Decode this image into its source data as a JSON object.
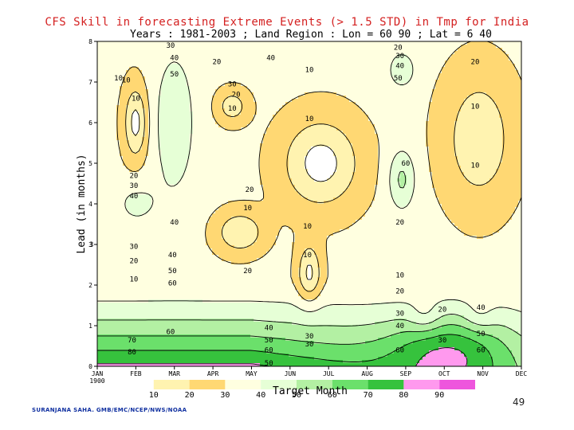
{
  "footer": "SURANJANA SAHA. GMB/EMC/NCEP/NWS/NOAA",
  "page_number": "49",
  "chart_data": {
    "type": "heatmap",
    "title": "CFS Skill in forecasting Extreme Events (> 1.5 STD) in Tmp for India",
    "subtitle": "Years : 1981-2003 ; Land Region : Lon = 60 90 ; Lat = 6 40",
    "xlabel": "Target Month",
    "ylabel": "Lead (in months)",
    "x_categories": [
      "JAN 1900",
      "FEB",
      "MAR",
      "APR",
      "MAY",
      "JUN",
      "JUL",
      "AUG",
      "SEP",
      "OCT",
      "NOV",
      "DEC"
    ],
    "y_ticks": [
      "0",
      "1",
      "2",
      "3",
      "4",
      "5",
      "6",
      "7",
      "8"
    ],
    "ylim": [
      0,
      8
    ],
    "levels": [
      10,
      20,
      30,
      40,
      50,
      60,
      70,
      80,
      90
    ],
    "level_labels": [
      "10",
      "20",
      "30",
      "40",
      "50",
      "60",
      "70",
      "80",
      "90"
    ],
    "colors": {
      "lt10": "#ffffff",
      "c10_20": "#fff3b0",
      "c20_30": "#ffd873",
      "c30_40": "#ffffe0",
      "c40_50": "#e6ffd6",
      "c50_60": "#b3f0a3",
      "c60_70": "#6be06b",
      "c70_80": "#36c23d",
      "c80_90": "#ff99ee",
      "ge90": "#ee55dd",
      "accent_title": "#d42020"
    },
    "contour_labels": [
      {
        "x": 1.9,
        "y": 7.9,
        "v": 30
      },
      {
        "x": 3.1,
        "y": 7.5,
        "v": 20
      },
      {
        "x": 2.0,
        "y": 7.6,
        "v": 40
      },
      {
        "x": 4.5,
        "y": 7.6,
        "v": 40
      },
      {
        "x": 2.0,
        "y": 7.2,
        "v": 50
      },
      {
        "x": 3.5,
        "y": 6.95,
        "v": 30
      },
      {
        "x": 0.75,
        "y": 7.05,
        "v": 10
      },
      {
        "x": 5.5,
        "y": 7.3,
        "v": 10
      },
      {
        "x": 3.6,
        "y": 6.7,
        "v": 20
      },
      {
        "x": 1.0,
        "y": 6.6,
        "v": 10
      },
      {
        "x": 3.5,
        "y": 6.35,
        "v": 10
      },
      {
        "x": 5.5,
        "y": 6.1,
        "v": 10
      },
      {
        "x": 7.8,
        "y": 7.85,
        "v": 20
      },
      {
        "x": 7.85,
        "y": 7.65,
        "v": 30
      },
      {
        "x": 7.85,
        "y": 7.4,
        "v": 40
      },
      {
        "x": 7.8,
        "y": 7.1,
        "v": 50
      },
      {
        "x": 9.8,
        "y": 7.5,
        "v": 20
      },
      {
        "x": 9.8,
        "y": 6.4,
        "v": 10
      },
      {
        "x": 8.0,
        "y": 5.0,
        "v": 60
      },
      {
        "x": 9.8,
        "y": 4.95,
        "v": 10
      },
      {
        "x": 0.95,
        "y": 4.7,
        "v": 20
      },
      {
        "x": 0.95,
        "y": 4.45,
        "v": 30
      },
      {
        "x": 0.95,
        "y": 4.2,
        "v": 40
      },
      {
        "x": 3.95,
        "y": 4.35,
        "v": 20
      },
      {
        "x": 3.9,
        "y": 3.9,
        "v": 10
      },
      {
        "x": 2.0,
        "y": 3.55,
        "v": 40
      },
      {
        "x": 5.45,
        "y": 3.45,
        "v": 10
      },
      {
        "x": 7.85,
        "y": 3.55,
        "v": 20
      },
      {
        "x": 0.95,
        "y": 2.95,
        "v": 30
      },
      {
        "x": 0.95,
        "y": 2.6,
        "v": 20
      },
      {
        "x": 0.95,
        "y": 2.15,
        "v": 10
      },
      {
        "x": 1.95,
        "y": 2.75,
        "v": 40
      },
      {
        "x": 1.95,
        "y": 2.35,
        "v": 50
      },
      {
        "x": 1.95,
        "y": 2.05,
        "v": 60
      },
      {
        "x": 3.9,
        "y": 2.35,
        "v": 20
      },
      {
        "x": 5.45,
        "y": 2.75,
        "v": 10
      },
      {
        "x": 7.85,
        "y": 2.25,
        "v": 10
      },
      {
        "x": 7.85,
        "y": 1.85,
        "v": 20
      },
      {
        "x": 8.95,
        "y": 1.4,
        "v": 20
      },
      {
        "x": 9.95,
        "y": 1.45,
        "v": 40
      },
      {
        "x": 7.85,
        "y": 1.3,
        "v": 30
      },
      {
        "x": 7.85,
        "y": 1.0,
        "v": 40
      },
      {
        "x": 8.95,
        "y": 0.65,
        "v": 30
      },
      {
        "x": 9.95,
        "y": 0.8,
        "v": 50
      },
      {
        "x": 9.95,
        "y": 0.4,
        "v": 60
      },
      {
        "x": 7.85,
        "y": 0.4,
        "v": 60
      },
      {
        "x": 1.9,
        "y": 0.85,
        "v": 60
      },
      {
        "x": 0.9,
        "y": 0.65,
        "v": 70
      },
      {
        "x": 0.9,
        "y": 0.35,
        "v": 80
      },
      {
        "x": 4.45,
        "y": 0.95,
        "v": 40
      },
      {
        "x": 4.45,
        "y": 0.65,
        "v": 50
      },
      {
        "x": 4.45,
        "y": 0.4,
        "v": 60
      },
      {
        "x": 4.45,
        "y": 0.08,
        "v": 50
      },
      {
        "x": 5.5,
        "y": 0.75,
        "v": 30
      },
      {
        "x": 5.5,
        "y": 0.55,
        "v": 30
      },
      {
        "x": -0.15,
        "y": 3.0,
        "v": 3
      },
      {
        "x": 0.55,
        "y": 7.1,
        "v": 10
      }
    ]
  }
}
